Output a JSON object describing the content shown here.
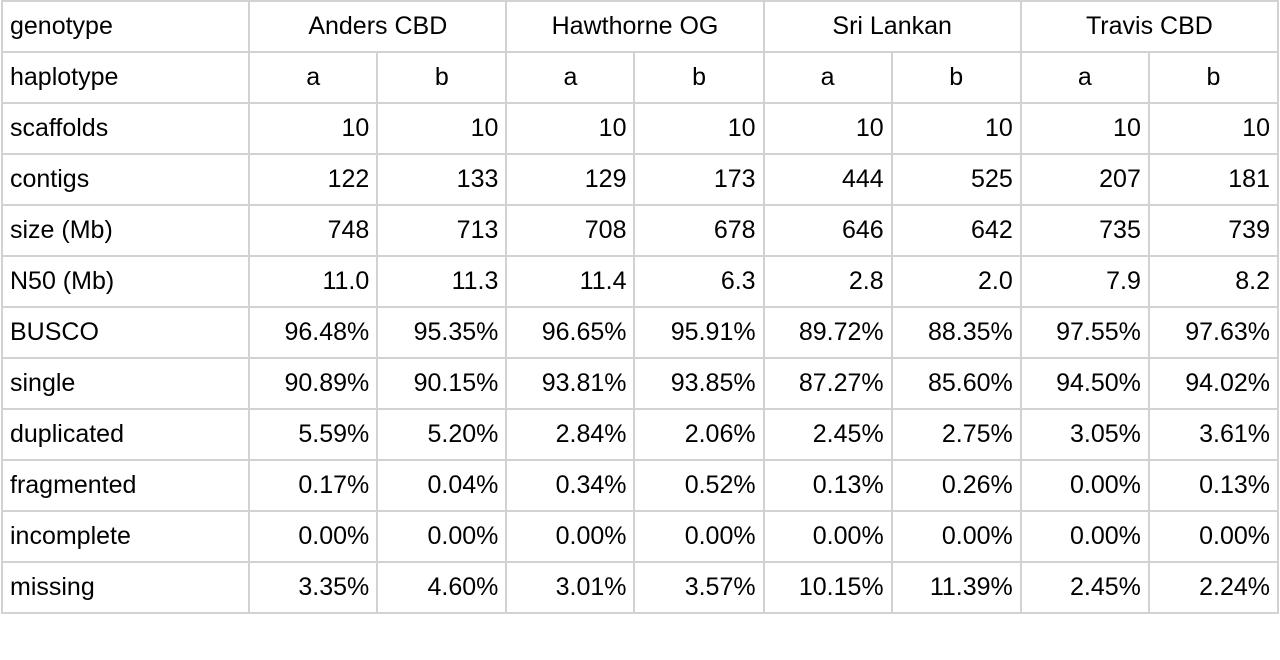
{
  "table": {
    "corner_label": "genotype",
    "genotypes": [
      "Anders CBD",
      "Hawthorne OG",
      "Sri Lankan",
      "Travis CBD"
    ],
    "haplotype_label": "haplotype",
    "haplotypes": [
      "a",
      "b",
      "a",
      "b",
      "a",
      "b",
      "a",
      "b"
    ],
    "rows": [
      {
        "label": "scaffolds",
        "values": [
          "10",
          "10",
          "10",
          "10",
          "10",
          "10",
          "10",
          "10"
        ]
      },
      {
        "label": "contigs",
        "values": [
          "122",
          "133",
          "129",
          "173",
          "444",
          "525",
          "207",
          "181"
        ]
      },
      {
        "label": "size (Mb)",
        "values": [
          "748",
          "713",
          "708",
          "678",
          "646",
          "642",
          "735",
          "739"
        ]
      },
      {
        "label": "N50 (Mb)",
        "values": [
          "11.0",
          "11.3",
          "11.4",
          "6.3",
          "2.8",
          "2.0",
          "7.9",
          "8.2"
        ]
      },
      {
        "label": "BUSCO",
        "values": [
          "96.48%",
          "95.35%",
          "96.65%",
          "95.91%",
          "89.72%",
          "88.35%",
          "97.55%",
          "97.63%"
        ]
      },
      {
        "label": "single",
        "values": [
          "90.89%",
          "90.15%",
          "93.81%",
          "93.85%",
          "87.27%",
          "85.60%",
          "94.50%",
          "94.02%"
        ]
      },
      {
        "label": "duplicated",
        "values": [
          "5.59%",
          "5.20%",
          "2.84%",
          "2.06%",
          "2.45%",
          "2.75%",
          "3.05%",
          "3.61%"
        ]
      },
      {
        "label": "fragmented",
        "values": [
          "0.17%",
          "0.04%",
          "0.34%",
          "0.52%",
          "0.13%",
          "0.26%",
          "0.00%",
          "0.13%"
        ]
      },
      {
        "label": "incomplete",
        "values": [
          "0.00%",
          "0.00%",
          "0.00%",
          "0.00%",
          "0.00%",
          "0.00%",
          "0.00%",
          "0.00%"
        ]
      },
      {
        "label": "missing",
        "values": [
          "3.35%",
          "4.60%",
          "3.01%",
          "3.57%",
          "10.15%",
          "11.39%",
          "2.45%",
          "2.24%"
        ]
      }
    ]
  }
}
